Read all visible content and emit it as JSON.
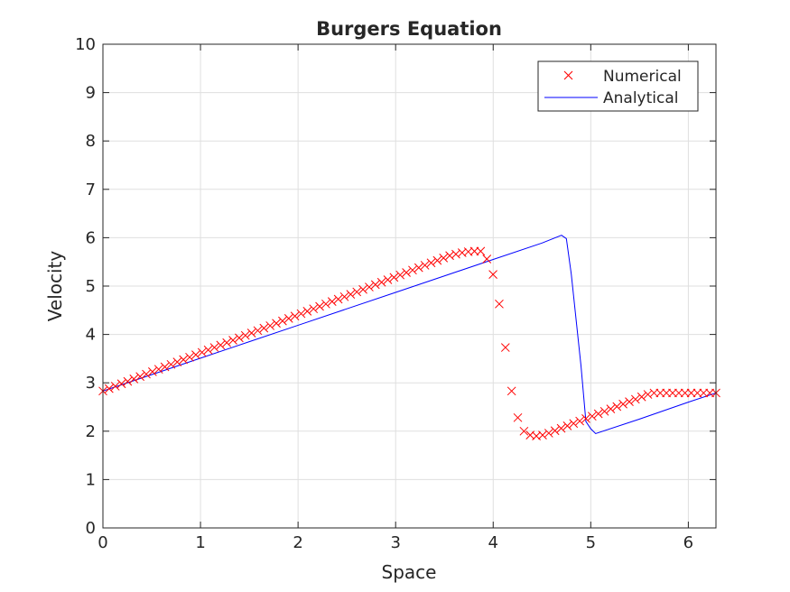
{
  "chart_data": {
    "type": "line",
    "title": "Burgers Equation",
    "xlabel": "Space",
    "ylabel": "Velocity",
    "xlim": [
      0,
      6.2832
    ],
    "ylim": [
      0,
      10
    ],
    "xticks": [
      0,
      1,
      2,
      3,
      4,
      5,
      6
    ],
    "yticks": [
      0,
      1,
      2,
      3,
      4,
      5,
      6,
      7,
      8,
      9,
      10
    ],
    "grid": true,
    "legend_position": "top-right",
    "series": [
      {
        "name": "Numerical",
        "style": "markers",
        "marker": "x",
        "color": "#ff0000",
        "x": [
          0,
          0.0634,
          0.1269,
          0.1904,
          0.2539,
          0.3173,
          0.3808,
          0.4443,
          0.5077,
          0.5712,
          0.6347,
          0.6981,
          0.7616,
          0.8251,
          0.8885,
          0.952,
          1.0155,
          1.0789,
          1.1424,
          1.2059,
          1.2693,
          1.3328,
          1.3963,
          1.4597,
          1.5232,
          1.5867,
          1.6501,
          1.7136,
          1.7771,
          1.8405,
          1.904,
          1.9675,
          2.0309,
          2.0944,
          2.1579,
          2.2213,
          2.2848,
          2.3483,
          2.4117,
          2.4752,
          2.5387,
          2.6021,
          2.6656,
          2.7291,
          2.7925,
          2.856,
          2.9195,
          2.9829,
          3.0464,
          3.1099,
          3.1733,
          3.2368,
          3.3003,
          3.3637,
          3.4272,
          3.4907,
          3.5541,
          3.6176,
          3.6811,
          3.7445,
          3.808,
          3.8715,
          3.9349,
          3.9984,
          4.0619,
          4.1253,
          4.1888,
          4.2523,
          4.3157,
          4.3792,
          4.4427,
          4.5061,
          4.5696,
          4.6331,
          4.6965,
          4.76,
          4.8235,
          4.8869,
          4.9504,
          5.0139,
          5.0773,
          5.1408,
          5.2043,
          5.2677,
          5.3312,
          5.3947,
          5.4581,
          5.5216,
          5.5851,
          5.6485,
          5.712,
          5.7755,
          5.8389,
          5.9024,
          5.9659,
          6.0293,
          6.0928,
          6.1563,
          6.2197,
          6.2832
        ],
        "y": [
          2.83,
          2.88,
          2.93,
          2.98,
          3.03,
          3.08,
          3.13,
          3.18,
          3.23,
          3.28,
          3.33,
          3.38,
          3.43,
          3.48,
          3.53,
          3.58,
          3.63,
          3.68,
          3.73,
          3.78,
          3.83,
          3.88,
          3.93,
          3.98,
          4.03,
          4.08,
          4.13,
          4.18,
          4.23,
          4.28,
          4.33,
          4.38,
          4.43,
          4.48,
          4.53,
          4.58,
          4.63,
          4.68,
          4.73,
          4.78,
          4.83,
          4.88,
          4.93,
          4.98,
          5.03,
          5.08,
          5.13,
          5.18,
          5.23,
          5.28,
          5.33,
          5.38,
          5.43,
          5.48,
          5.53,
          5.58,
          5.63,
          5.66,
          5.69,
          5.71,
          5.72,
          5.72,
          5.56,
          5.24,
          4.63,
          3.73,
          2.83,
          2.28,
          2.0,
          1.92,
          1.9,
          1.92,
          1.96,
          2.01,
          2.06,
          2.11,
          2.16,
          2.21,
          2.26,
          2.31,
          2.36,
          2.41,
          2.46,
          2.51,
          2.56,
          2.61,
          2.66,
          2.71,
          2.76,
          2.79,
          2.79,
          2.79,
          2.79,
          2.79,
          2.79,
          2.79,
          2.79,
          2.79,
          2.79,
          2.79
        ]
      },
      {
        "name": "Analytical",
        "style": "line",
        "color": "#0000ff",
        "x": [
          0,
          0.5,
          1.0,
          1.5,
          2.0,
          2.5,
          3.0,
          3.5,
          4.0,
          4.5,
          4.7,
          4.75,
          4.8,
          4.85,
          4.9,
          4.95,
          5.0,
          5.05,
          5.5,
          6.0,
          6.2832
        ],
        "y": [
          2.83,
          3.17,
          3.51,
          3.85,
          4.19,
          4.53,
          4.87,
          5.21,
          5.55,
          5.89,
          6.05,
          5.98,
          5.25,
          4.3,
          3.35,
          2.2,
          2.05,
          1.95,
          2.25,
          2.6,
          2.79
        ]
      }
    ]
  }
}
